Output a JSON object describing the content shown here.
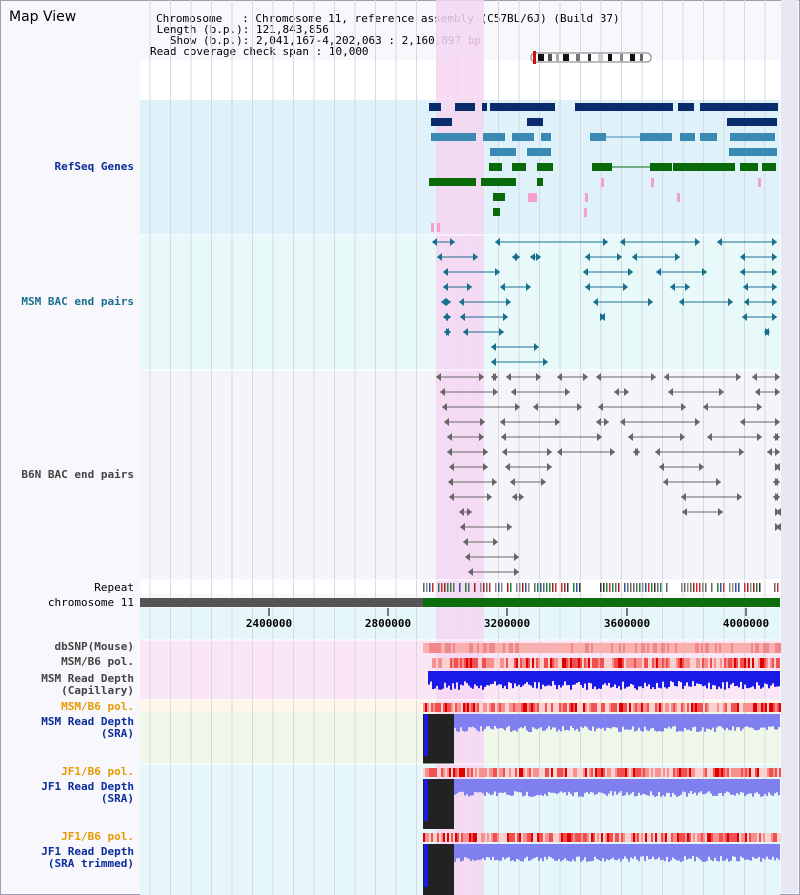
{
  "title": "Map View",
  "info": {
    "chromosome_label": "Chromosome   ",
    "chromosome_value": ": Chromosome 11, reference assembly (C57BL/6J) (Build 37)",
    "length_label": " Length (b.p.)",
    "length_value": ": 121,843,856",
    "show_label": "   Show (b.p.)",
    "show_value": ": 2,041,167-4,202,063 : 2,160,897 bp",
    "span_label": "Read coverage check span",
    "span_value": ": 10,000"
  },
  "tracks": {
    "refseq": "RefSeq Genes",
    "msm_bac": "MSM BAC end pairs",
    "b6n_bac": "B6N BAC end pairs",
    "repeat": "Repeat",
    "chromosome": "chromosome 11",
    "dbsnp": "dbSNP(Mouse)",
    "msm_b6_pol_1": "MSM/B6 pol.",
    "msm_depth_cap_1": "MSM Read Depth",
    "msm_depth_cap_2": "(Capillary)",
    "msm_b6_pol_2": "MSM/B6 pol.",
    "msm_depth_sra_1": "MSM Read Depth",
    "msm_depth_sra_2": "(SRA)",
    "jf1_b6_pol_1": "JF1/B6 pol.",
    "jf1_depth_sra_1": "JF1 Read Depth",
    "jf1_depth_sra_2": "(SRA)",
    "jf1_b6_pol_2": "JF1/B6 pol.",
    "jf1_depth_trim_1": "JF1 Read Depth",
    "jf1_depth_trim_2": "(SRA trimmed)"
  },
  "ruler": {
    "ticks": [
      "2400000",
      "2800000",
      "3200000",
      "3600000",
      "4000000"
    ]
  },
  "colors": {
    "refseq_bg": "#dff1f9",
    "msm_bg": "#e8f9f9",
    "b6n_bg": "#f3f5fa",
    "highlight": "#f6d6f2",
    "navy": "#0a2c6c",
    "teal": "#3b8ab4",
    "green": "#0a6a0a",
    "msm_line": "#1a6f8f",
    "b6n_line": "#666666",
    "chrom_green": "#0d6e0d",
    "depth_blue": "#1a1ae6",
    "depth_light": "#7f7ff0",
    "label_navy": "#0a2c9c",
    "label_teal": "#1a6f8f",
    "label_grey": "#444444",
    "label_orange": "#e69a00"
  }
}
